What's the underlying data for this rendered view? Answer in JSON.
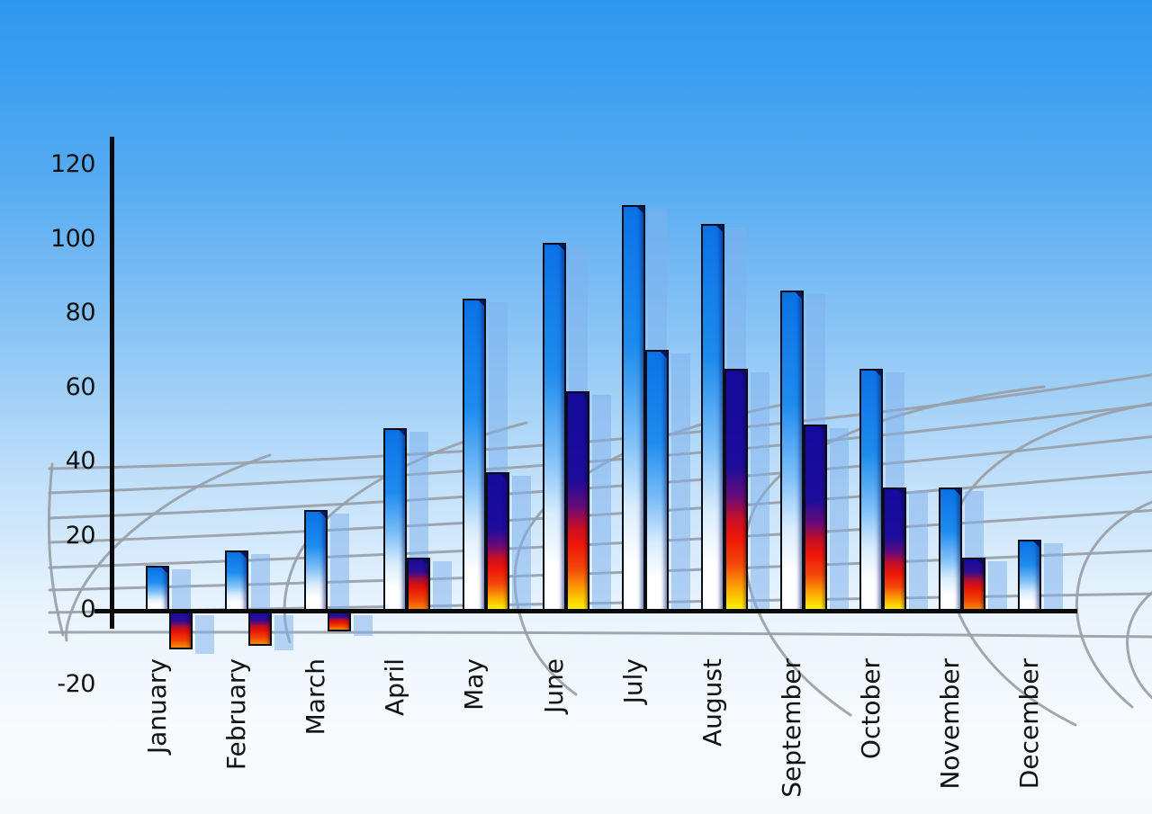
{
  "chart_data": {
    "type": "bar",
    "title": "",
    "xlabel": "",
    "ylabel": "",
    "categories": [
      "January",
      "February",
      "March",
      "April",
      "May",
      "June",
      "July",
      "August",
      "September",
      "October",
      "November",
      "December"
    ],
    "series": [
      {
        "name": "series-1-blue",
        "style": "blue",
        "values": [
          12,
          16,
          27,
          49,
          84,
          99,
          109,
          104,
          86,
          65,
          33,
          19
        ]
      },
      {
        "name": "series-2-heat",
        "style": "heat",
        "values": [
          -10,
          -9,
          -5,
          14,
          37,
          59,
          70,
          65,
          50,
          33,
          14,
          null
        ],
        "bar_styles": [
          "heat-short",
          "heat-short",
          "heat-short",
          "heat-short",
          "heat-tall",
          "heat-tall",
          "blue",
          "heat-tall",
          "heat-tall",
          "heat-tall",
          "heat-short",
          null
        ]
      }
    ],
    "yticks": [
      120,
      100,
      80,
      60,
      40,
      20,
      0,
      -20
    ],
    "ylim": [
      -20,
      120
    ],
    "grid": "perspective-floor-curved",
    "legend": "none"
  },
  "colors": {
    "background_top": "#2b97ef",
    "background_bottom": "#f6f9fc",
    "bar_blue_top": "#0a72e6",
    "heat_navy": "#140a9c",
    "heat_red": "#ee1607",
    "heat_yellow": "#fdf501",
    "bar_outline": "#0a0c16",
    "shadow_bar": "rgba(127,177,235,0.52)",
    "axis": "#0a0a0c",
    "grid_line": "#98a0a8",
    "label_text": "#121212"
  }
}
